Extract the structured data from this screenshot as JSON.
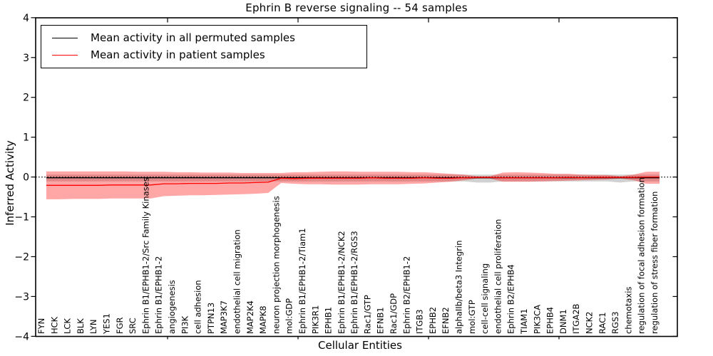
{
  "chart_data": {
    "type": "line",
    "title": "Ephrin B reverse signaling -- 54 samples",
    "xlabel": "Cellular Entities",
    "ylabel": "Inferred Activity",
    "ylim": [
      -4,
      4
    ],
    "yticks": [
      4,
      3,
      2,
      1,
      0,
      -1,
      -2,
      -3,
      -4
    ],
    "ytick_labels": [
      "4",
      "3",
      "2",
      "1",
      "0",
      "−1",
      "−2",
      "−3",
      "−4"
    ],
    "grid": false,
    "legend_position": "upper left",
    "zero_line": {
      "value": 0,
      "style": "dotted",
      "color": "#000000"
    },
    "categories": [
      "FYN",
      "HCK",
      "LCK",
      "BLK",
      "LYN",
      "YES1",
      "FGR",
      "SRC",
      "Ephrin B1/EPHB1-2/Src Family Kinases",
      "Ephrin B1/EPHB1-2",
      "angiogenesis",
      "PI3K",
      "cell adhesion",
      "PTPN13",
      "MAP3K7",
      "endothelial cell migration",
      "MAP2K4",
      "MAPK8",
      "neuron projection morphogenesis",
      "mol:GDP",
      "Ephrin B1/EPHB1-2/Tiam1",
      "PIK3R1",
      "EPHB1",
      "Ephrin B1/EPHB1-2/NCK2",
      "Ephrin B1/EPHB1-2/RGS3",
      "Rac1/GTP",
      "EFNB1",
      "Rac1/GDP",
      "Ephrin B2/EPHB1-2",
      "ITGB3",
      "EPHB2",
      "EFNB2",
      "alphaIIb/beta3 Integrin",
      "mol:GTP",
      "cell-cell signaling",
      "endothelial cell proliferation",
      "Ephrin B2/EPHB4",
      "TIAM1",
      "PIK3CA",
      "EPHB4",
      "DNM1",
      "ITGA2B",
      "NCK2",
      "RAC1",
      "RGS3",
      "chemotaxis",
      "regulation of focal adhesion formation",
      "regulation of stress fiber formation"
    ],
    "series": [
      {
        "name": "Mean activity in all permuted samples",
        "color": "#000000",
        "band_color": "#000000",
        "band_opacity": 0.18,
        "values": [
          -0.02,
          -0.02,
          -0.02,
          -0.02,
          -0.02,
          -0.02,
          -0.02,
          -0.02,
          -0.02,
          -0.02,
          -0.02,
          -0.02,
          -0.02,
          -0.02,
          -0.02,
          -0.02,
          -0.02,
          -0.02,
          -0.02,
          -0.02,
          -0.02,
          -0.02,
          -0.02,
          -0.02,
          -0.02,
          -0.02,
          -0.02,
          -0.02,
          -0.02,
          -0.02,
          -0.02,
          -0.02,
          -0.02,
          -0.02,
          -0.02,
          -0.02,
          -0.02,
          -0.02,
          -0.02,
          -0.02,
          -0.02,
          -0.02,
          -0.02,
          -0.02,
          -0.02,
          -0.02,
          -0.02,
          -0.02
        ],
        "upper": [
          0.06,
          0.06,
          0.06,
          0.06,
          0.06,
          0.06,
          0.06,
          0.06,
          0.06,
          0.06,
          0.06,
          0.06,
          0.06,
          0.06,
          0.06,
          0.06,
          0.06,
          0.06,
          0.06,
          0.06,
          0.06,
          0.06,
          0.06,
          0.06,
          0.06,
          0.06,
          0.06,
          0.06,
          0.06,
          0.06,
          0.06,
          0.06,
          0.06,
          0.06,
          0.06,
          0.06,
          0.06,
          0.06,
          0.06,
          0.06,
          0.06,
          0.06,
          0.06,
          0.06,
          0.06,
          0.06,
          0.06,
          0.06
        ],
        "lower": [
          -0.11,
          -0.11,
          -0.11,
          -0.11,
          -0.11,
          -0.11,
          -0.11,
          -0.11,
          -0.11,
          -0.11,
          -0.11,
          -0.11,
          -0.11,
          -0.11,
          -0.11,
          -0.11,
          -0.11,
          -0.11,
          -0.11,
          -0.11,
          -0.11,
          -0.11,
          -0.11,
          -0.11,
          -0.11,
          -0.11,
          -0.11,
          -0.11,
          -0.11,
          -0.11,
          -0.11,
          -0.11,
          -0.11,
          -0.14,
          -0.14,
          -0.11,
          -0.11,
          -0.11,
          -0.11,
          -0.11,
          -0.11,
          -0.11,
          -0.11,
          -0.11,
          -0.14,
          -0.11,
          -0.11,
          -0.11
        ]
      },
      {
        "name": "Mean activity in patient samples",
        "color": "#ff0000",
        "band_color": "#ff0000",
        "band_opacity": 0.35,
        "values": [
          -0.21,
          -0.21,
          -0.21,
          -0.21,
          -0.21,
          -0.2,
          -0.2,
          -0.2,
          -0.2,
          -0.17,
          -0.17,
          -0.16,
          -0.16,
          -0.16,
          -0.15,
          -0.15,
          -0.14,
          -0.13,
          -0.03,
          -0.04,
          -0.03,
          -0.03,
          -0.03,
          -0.03,
          -0.03,
          -0.02,
          -0.03,
          -0.03,
          -0.03,
          -0.02,
          -0.03,
          -0.03,
          -0.02,
          -0.01,
          -0.01,
          -0.02,
          -0.02,
          -0.02,
          -0.02,
          -0.02,
          -0.01,
          -0.02,
          -0.01,
          -0.01,
          -0.01,
          -0.01,
          0.0,
          0.0
        ],
        "upper": [
          0.14,
          0.14,
          0.14,
          0.14,
          0.14,
          0.14,
          0.14,
          0.13,
          0.13,
          0.13,
          0.12,
          0.12,
          0.11,
          0.11,
          0.11,
          0.1,
          0.1,
          0.1,
          0.1,
          0.12,
          0.12,
          0.13,
          0.14,
          0.14,
          0.13,
          0.13,
          0.13,
          0.13,
          0.12,
          0.12,
          0.1,
          0.08,
          0.06,
          0.02,
          0.02,
          0.11,
          0.12,
          0.11,
          0.1,
          0.08,
          0.08,
          0.06,
          0.05,
          0.05,
          0.02,
          0.06,
          0.13,
          0.13
        ],
        "lower": [
          -0.56,
          -0.56,
          -0.55,
          -0.55,
          -0.55,
          -0.54,
          -0.54,
          -0.54,
          -0.54,
          -0.48,
          -0.47,
          -0.46,
          -0.46,
          -0.45,
          -0.44,
          -0.43,
          -0.42,
          -0.4,
          -0.15,
          -0.17,
          -0.18,
          -0.18,
          -0.19,
          -0.19,
          -0.19,
          -0.18,
          -0.18,
          -0.18,
          -0.17,
          -0.16,
          -0.14,
          -0.12,
          -0.08,
          -0.04,
          -0.04,
          -0.12,
          -0.12,
          -0.12,
          -0.11,
          -0.1,
          -0.09,
          -0.08,
          -0.07,
          -0.06,
          -0.04,
          -0.08,
          -0.17,
          -0.17
        ]
      }
    ]
  }
}
